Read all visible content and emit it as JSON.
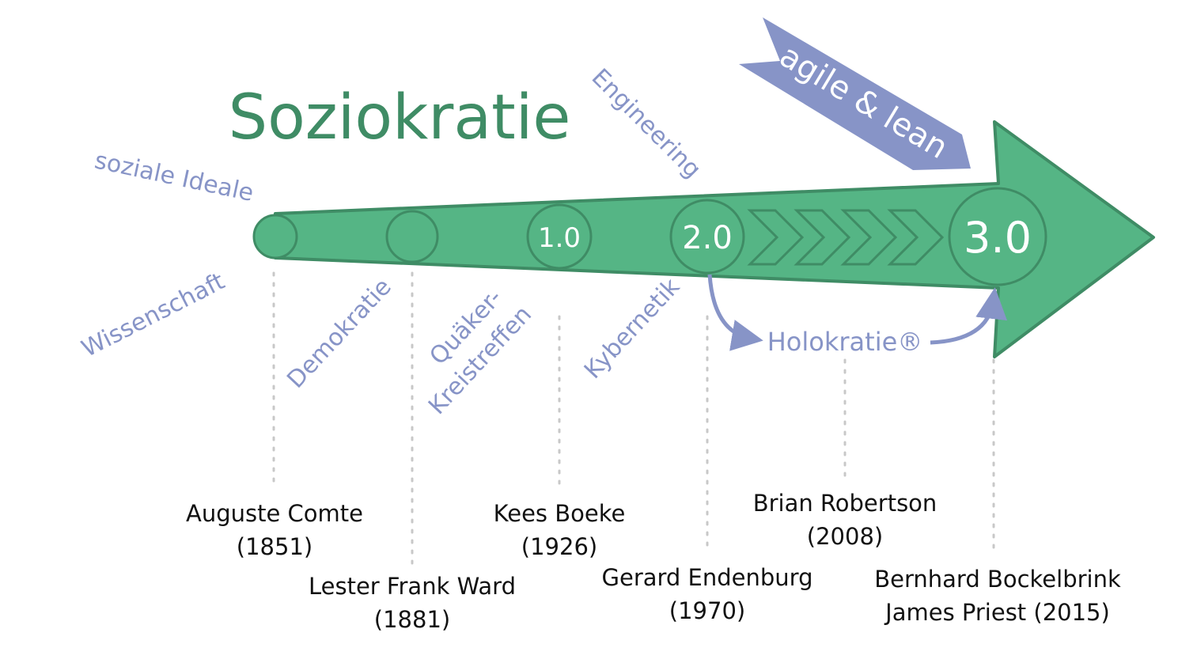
{
  "title": "Soziokratie",
  "banner": "agile & lean",
  "concepts": {
    "soziale_ideale": "soziale Ideale",
    "wissenschaft": "Wissenschaft",
    "demokratie": "Demokratie",
    "quaeker_line1": "Quäker-",
    "quaeker_line2": "Kreistreffen",
    "kybernetik": "Kybernetik",
    "engineering": "Engineering"
  },
  "versions": [
    "1.0",
    "2.0",
    "3.0"
  ],
  "holokratie": "Holokratie®",
  "people": [
    {
      "name": "Auguste Comte",
      "year": "(1851)"
    },
    {
      "name": "Lester Frank Ward",
      "year": "(1881)"
    },
    {
      "name": "Kees Boeke",
      "year": "(1926)"
    },
    {
      "name": "Gerard Endenburg",
      "year": "(1970)"
    },
    {
      "name": "Brian Robertson",
      "year": "(2008)"
    },
    {
      "name": "Bernhard Bockelbrink",
      "year": "James Priest (2015)"
    }
  ],
  "colors": {
    "arrow_fill": "#55b585",
    "arrow_stroke": "#3f8c65",
    "accent_blue": "#8794c7",
    "title_green": "#3f8c65"
  }
}
